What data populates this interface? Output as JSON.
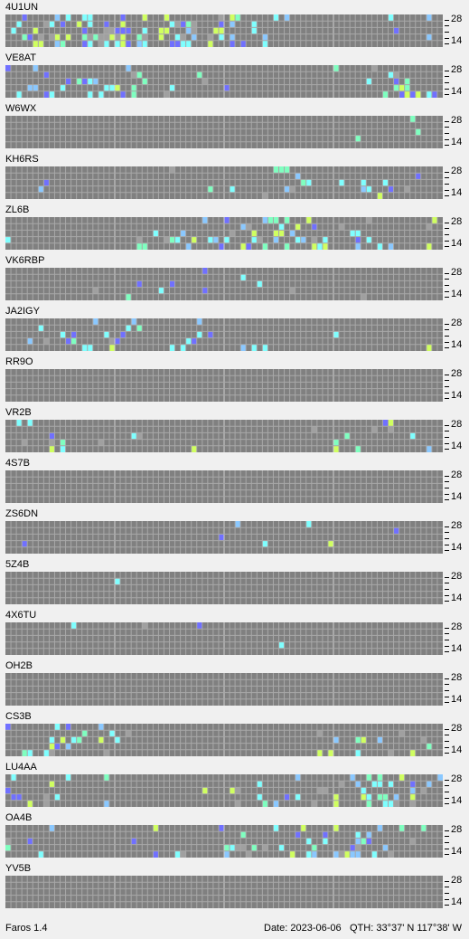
{
  "app": {
    "name": "Faros 1.4"
  },
  "status": {
    "date": "Date: 2023-06-06",
    "qth": "QTH: 33°37' N  117°38' W"
  },
  "scale": {
    "top_label": "28",
    "bottom_label": "14"
  },
  "colors": {
    "grid_bg": "#808080",
    "grid_line": "#a8a8a8",
    "grid_major": "#d0d0d0",
    "signal_weak": "#8ac8ff",
    "signal_med": "#7fffff",
    "signal_strong": "#7fffc0",
    "signal_very_strong": "#d0ff60",
    "signal_low": "#7070ff",
    "noise": "#a0a0a0"
  },
  "beacons": [
    {
      "name": "4U1UN",
      "level": 0.9
    },
    {
      "name": "VE8AT",
      "level": 0.5
    },
    {
      "name": "W6WX",
      "level": 0.05
    },
    {
      "name": "KH6RS",
      "level": 0.2
    },
    {
      "name": "ZL6B",
      "level": 0.55
    },
    {
      "name": "VK6RBP",
      "level": 0.12
    },
    {
      "name": "JA2IGY",
      "level": 0.35
    },
    {
      "name": "RR9O",
      "level": 0
    },
    {
      "name": "VR2B",
      "level": 0.25
    },
    {
      "name": "4S7B",
      "level": 0
    },
    {
      "name": "ZS6DN",
      "level": 0.1
    },
    {
      "name": "5Z4B",
      "level": 0.01
    },
    {
      "name": "4X6TU",
      "level": 0.02
    },
    {
      "name": "OH2B",
      "level": 0.01
    },
    {
      "name": "CS3B",
      "level": 0.3
    },
    {
      "name": "LU4AA",
      "level": 0.55
    },
    {
      "name": "OA4B",
      "level": 0.6
    },
    {
      "name": "YV5B",
      "level": 0
    }
  ]
}
